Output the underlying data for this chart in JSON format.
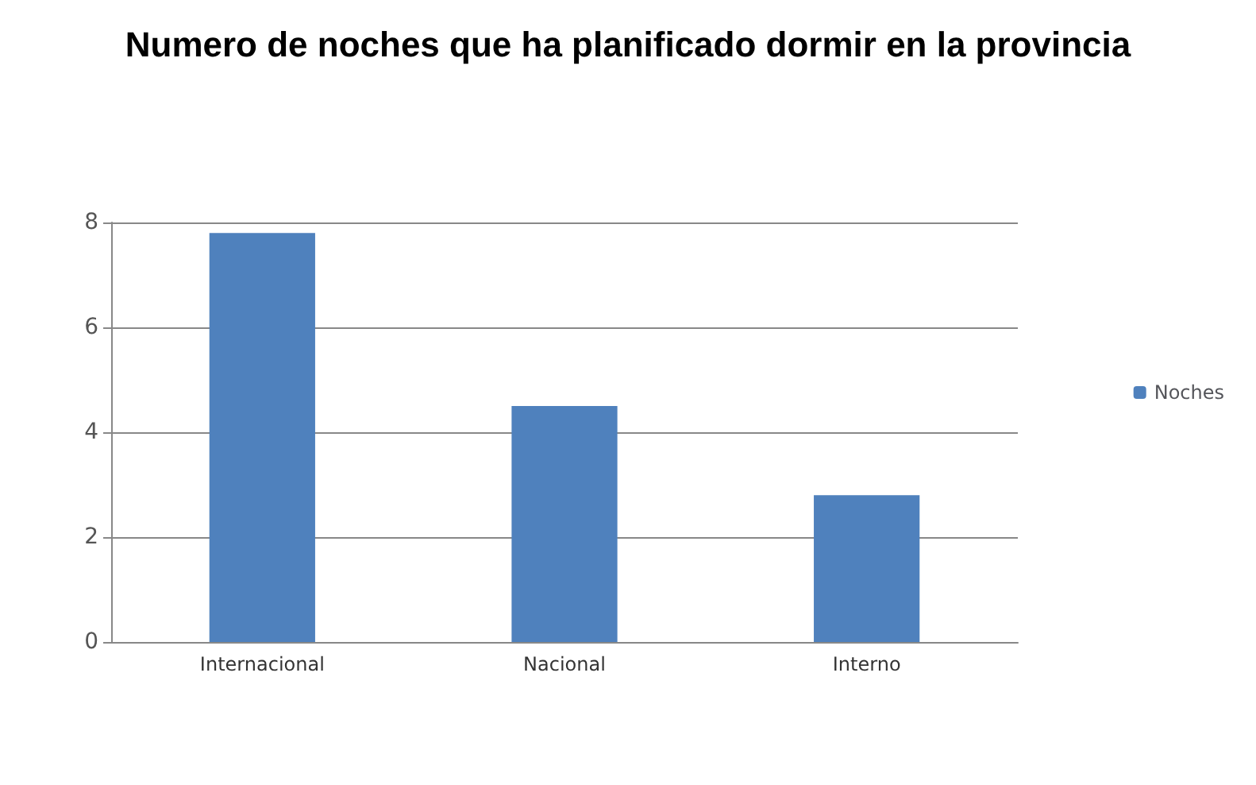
{
  "chart_data": {
    "type": "bar",
    "title": "Numero de noches que ha planificado dormir en la provincia",
    "categories": [
      "Internacional",
      "Nacional",
      "Interno"
    ],
    "series": [
      {
        "name": "Noches",
        "color": "#4f81bd",
        "values": [
          7.8,
          4.5,
          2.8
        ]
      }
    ],
    "ylim": [
      0,
      8
    ],
    "yticks": [
      0,
      2,
      4,
      6,
      8
    ],
    "grid": "y",
    "legend": "right"
  }
}
